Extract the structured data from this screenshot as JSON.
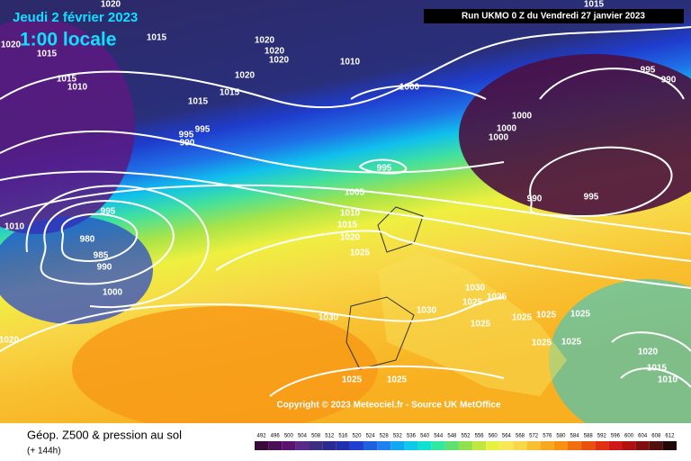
{
  "header": {
    "date": "Jeudi 2 février 2023",
    "time": "1:00 locale",
    "run": "Run UKMO 0 Z du Vendredi 27 janvier 2023"
  },
  "copyright": "Copyright © 2023 Meteociel.fr - Source UK MetOffice",
  "footer": {
    "title": "Géop. Z500 & pression au sol",
    "lead": "(+ 144h)"
  },
  "isobar_labels": [
    "1020",
    "1015",
    "1020",
    "1015",
    "1015",
    "1010",
    "1015",
    "1015",
    "1020",
    "1020",
    "1020",
    "1020",
    "1010",
    "1000",
    "995",
    "990",
    "1000",
    "1000",
    "1000",
    "995",
    "995",
    "990",
    "995",
    "1005",
    "1010",
    "1015",
    "1020",
    "1025",
    "990",
    "995",
    "995",
    "980",
    "985",
    "990",
    "1000",
    "1010",
    "1030",
    "1025",
    "1030",
    "1030",
    "1025",
    "1025",
    "1025",
    "1025",
    "1025",
    "1025",
    "1025",
    "1020",
    "1020",
    "1015",
    "1010",
    "1025",
    "1025",
    "1015"
  ],
  "scale": {
    "values": [
      492,
      496,
      500,
      504,
      508,
      512,
      516,
      520,
      524,
      528,
      532,
      536,
      540,
      544,
      548,
      552,
      556,
      560,
      564,
      568,
      572,
      576,
      580,
      584,
      588,
      592,
      596,
      600,
      604,
      608,
      612
    ],
    "colors": [
      "#3a0a3a",
      "#4b0f55",
      "#5a1470",
      "#5a2a8a",
      "#3c2f80",
      "#2a2a90",
      "#1f2fb0",
      "#1f40d0",
      "#1f60e0",
      "#1f80f0",
      "#10a8f0",
      "#10c8e8",
      "#10e0d0",
      "#30e8a0",
      "#60e070",
      "#90e050",
      "#c0e840",
      "#e8f040",
      "#f8e858",
      "#f8d848",
      "#f8c030",
      "#f8a820",
      "#f89010",
      "#f07010",
      "#e85010",
      "#e03010",
      "#d01818",
      "#b01010",
      "#801010",
      "#501010",
      "#200808"
    ]
  }
}
